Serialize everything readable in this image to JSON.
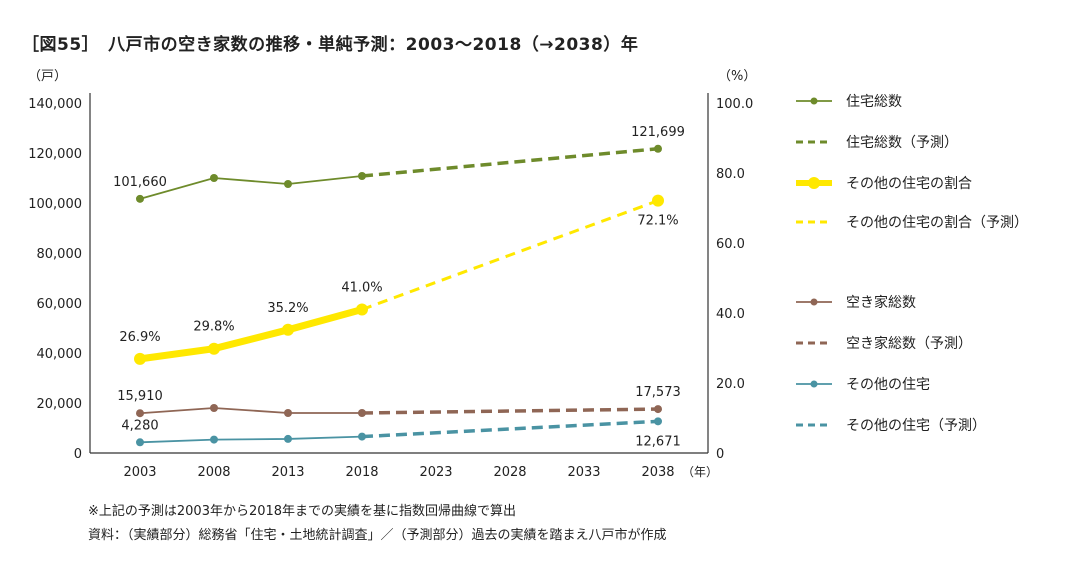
{
  "title": "［図55］　八戸市の空き家数の推移・単純予測：2003～2018（→2038）年",
  "notes": [
    "※上記の予測は2003年から2018年までの実績を基に指数回帰曲線で算出",
    "資料：（実績部分）総務省「住宅・土地統計調査」／（予測部分）過去の実績を踏まえ八戸市が作成"
  ],
  "chart_data": {
    "type": "line",
    "title": "八戸市の空き家数の推移・単純予測：2003～2018（→2038）年",
    "x": [
      2003,
      2008,
      2013,
      2018,
      2023,
      2028,
      2033,
      2038
    ],
    "x_tick_labels": [
      "2003",
      "2008",
      "2013",
      "2018",
      "2023",
      "2028",
      "2033",
      "2038"
    ],
    "x_unit": "（年）",
    "y_left": {
      "unit": "（戸）",
      "range": [
        0,
        140000
      ],
      "ticks": [
        0,
        20000,
        40000,
        60000,
        80000,
        100000,
        120000,
        140000
      ],
      "tick_labels": [
        "0",
        "20,000",
        "40,000",
        "60,000",
        "80,000",
        "100,000",
        "120,000",
        "140,000"
      ]
    },
    "y_right": {
      "unit": "（%）",
      "range": [
        0,
        100
      ],
      "ticks": [
        0,
        20,
        40,
        60,
        80,
        100
      ],
      "tick_labels": [
        "0",
        "20.0",
        "40.0",
        "60.0",
        "80.0",
        "100.0"
      ]
    },
    "grid": false,
    "legend_placement": "right",
    "series": [
      {
        "key": "total",
        "name": "住宅総数",
        "forecast_name": "住宅総数（予測）",
        "axis": "left",
        "color": "#6e8b2b",
        "actual": {
          "x": [
            2003,
            2008,
            2013,
            2018
          ],
          "y": [
            101660,
            110000,
            107600,
            110800
          ]
        },
        "forecast": {
          "x": [
            2018,
            2038
          ],
          "y": [
            110800,
            121699
          ]
        },
        "labels": [
          {
            "x": 2003,
            "text": "101,660"
          },
          {
            "x": 2038,
            "text": "121,699"
          }
        ]
      },
      {
        "key": "ratio",
        "name": "その他の住宅の割合",
        "forecast_name": "その他の住宅の割合（予測）",
        "axis": "right",
        "color": "#ffe800",
        "actual": {
          "x": [
            2003,
            2008,
            2013,
            2018
          ],
          "y": [
            26.9,
            29.8,
            35.2,
            41.0
          ]
        },
        "forecast": {
          "x": [
            2018,
            2038
          ],
          "y": [
            41.0,
            72.1
          ]
        },
        "labels": [
          {
            "x": 2003,
            "text": "26.9%"
          },
          {
            "x": 2008,
            "text": "29.8%"
          },
          {
            "x": 2013,
            "text": "35.2%"
          },
          {
            "x": 2018,
            "text": "41.0%"
          },
          {
            "x": 2038,
            "text": "72.1%"
          }
        ]
      },
      {
        "key": "vacant",
        "name": "空き家総数",
        "forecast_name": "空き家総数（予測）",
        "axis": "left",
        "color": "#8f6655",
        "actual": {
          "x": [
            2003,
            2008,
            2013,
            2018
          ],
          "y": [
            15910,
            18000,
            16000,
            16000
          ]
        },
        "forecast": {
          "x": [
            2018,
            2038
          ],
          "y": [
            16000,
            17573
          ]
        },
        "labels": [
          {
            "x": 2003,
            "text": "15,910"
          },
          {
            "x": 2038,
            "text": "17,573"
          }
        ]
      },
      {
        "key": "other",
        "name": "その他の住宅",
        "forecast_name": "その他の住宅（予測）",
        "axis": "left",
        "color": "#4a93a3",
        "actual": {
          "x": [
            2003,
            2008,
            2013,
            2018
          ],
          "y": [
            4280,
            5360,
            5630,
            6560
          ]
        },
        "forecast": {
          "x": [
            2018,
            2038
          ],
          "y": [
            6560,
            12671
          ]
        },
        "labels": [
          {
            "x": 2003,
            "text": "4,280"
          },
          {
            "x": 2038,
            "text": "12,671"
          }
        ]
      }
    ]
  }
}
